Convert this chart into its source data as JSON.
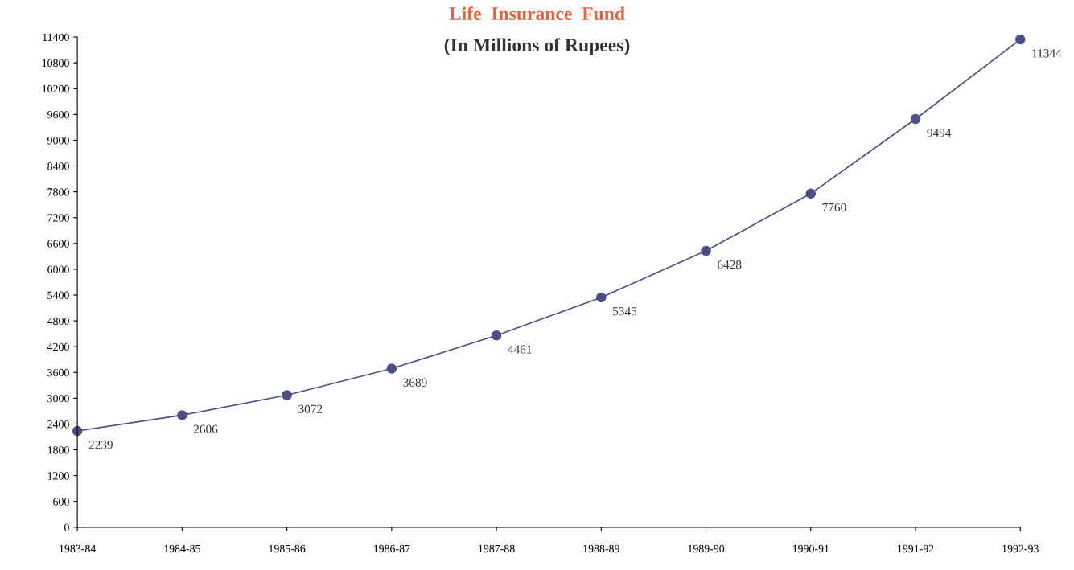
{
  "chart_data": {
    "type": "line",
    "title": "Life  Insurance  Fund",
    "subtitle": "(In Millions of Rupees)",
    "categories": [
      "1983-84",
      "1984-85",
      "1985-86",
      "1986-87",
      "1987-88",
      "1988-89",
      "1989-90",
      "1990-91",
      "1991-92",
      "1992-93"
    ],
    "series": [
      {
        "color": "#4b4f86",
        "values": [
          2239,
          2606,
          3072,
          3689,
          4461,
          5345,
          6428,
          7760,
          9494,
          11344
        ]
      }
    ],
    "ylim": [
      0,
      11400
    ],
    "yticks": [
      0,
      600,
      1200,
      1800,
      2400,
      3000,
      3600,
      4200,
      4800,
      5400,
      6000,
      6600,
      7200,
      7800,
      8400,
      9000,
      9600,
      10200,
      10800,
      11400
    ],
    "data_labels": true,
    "grid": false,
    "legend": false,
    "marker": "circle",
    "line_style": "solid"
  }
}
